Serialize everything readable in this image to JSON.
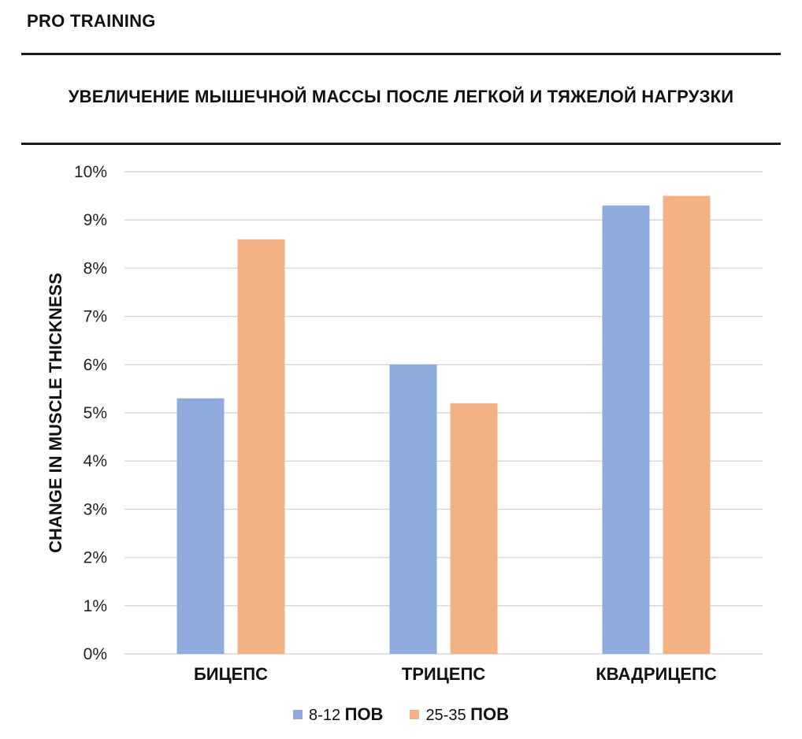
{
  "brand": "PRO TRAINING",
  "colors": {
    "series1": "#8faadc",
    "series2": "#f4b183",
    "grid": "#d9d9d9"
  },
  "chart_data": {
    "type": "bar",
    "title": "УВЕЛИЧЕНИЕ МЫШЕЧНОЙ МАССЫ ПОСЛЕ ЛЕГКОЙ И ТЯЖЕЛОЙ НАГРУЗКИ",
    "ylabel": "CHANGE IN MUSCLE THICKNESS",
    "xlabel": "",
    "categories": [
      "БИЦЕПС",
      "ТРИЦЕПС",
      "КВАДРИЦЕПС"
    ],
    "series": [
      {
        "name": "8-12 ПОВ",
        "name_prefix": "8-12",
        "name_suffix": "ПОВ",
        "values": [
          5.3,
          6.0,
          9.3
        ]
      },
      {
        "name": "25-35 ПОВ",
        "name_prefix": "25-35",
        "name_suffix": "ПОВ",
        "values": [
          8.6,
          5.2,
          9.5
        ]
      }
    ],
    "ylim": [
      0,
      10
    ],
    "yticks": [
      "0%",
      "1%",
      "2%",
      "3%",
      "4%",
      "5%",
      "6%",
      "7%",
      "8%",
      "9%",
      "10%"
    ],
    "grid": true,
    "legend_position": "bottom"
  }
}
